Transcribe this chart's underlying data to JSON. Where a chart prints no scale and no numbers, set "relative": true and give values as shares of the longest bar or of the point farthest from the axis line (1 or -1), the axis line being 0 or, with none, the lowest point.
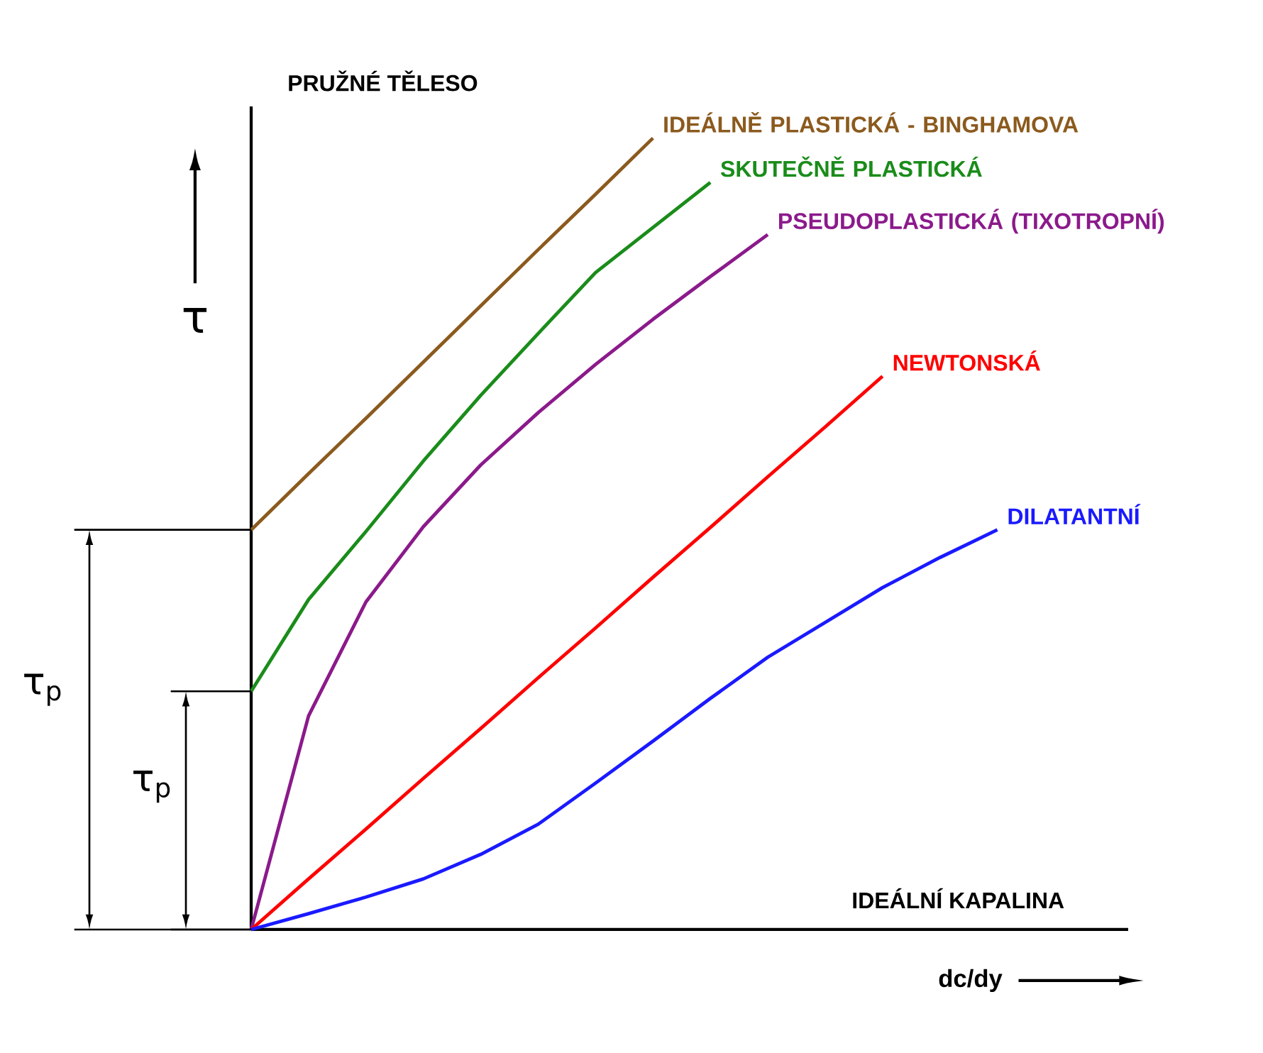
{
  "chart_data": {
    "type": "line",
    "relative": true,
    "xlabel": "dc/dy",
    "ylabel": "τ",
    "line_style": "solid",
    "categories": [
      null,
      null,
      null,
      null,
      null,
      null,
      null,
      null,
      null,
      null,
      null,
      null,
      null,
      null,
      null,
      null
    ],
    "annotations": [
      "PRUŽNÉ TĚLESO",
      "IDEÁLNÍ KAPALINA",
      "τ$_{p}$",
      "τ$_{p}$"
    ],
    "series": [
      {
        "name": "IDEÁLNĚ PLASTICKÁ - BINGHAMOVA",
        "color": "#8b5a1e",
        "values": [
          0.505,
          0.576,
          0.646,
          0.717,
          0.788,
          0.859,
          0.929,
          1.0,
          null,
          null,
          null,
          null,
          null,
          null,
          null,
          null
        ]
      },
      {
        "name": "SKUTEČNĚ PLASTICKÁ",
        "color": "#1a8c1a",
        "values": [
          0.301,
          0.417,
          0.503,
          0.592,
          0.675,
          0.753,
          0.83,
          0.887,
          0.944,
          null,
          null,
          null,
          null,
          null,
          null,
          null
        ]
      },
      {
        "name": "PSEUDOPLASTICKÁ (TIXOTROPNÍ)",
        "color": "#8b1a8b",
        "values": [
          0,
          0.27,
          0.414,
          0.509,
          0.587,
          0.653,
          0.714,
          0.771,
          0.825,
          0.878,
          null,
          null,
          null,
          null,
          null,
          null
        ]
      },
      {
        "name": "NEWTONSKÁ",
        "color": "#ff0000",
        "values": [
          0,
          0.064,
          0.127,
          0.191,
          0.254,
          0.318,
          0.381,
          0.445,
          0.508,
          0.572,
          0.635,
          0.699,
          null,
          null,
          null,
          null
        ]
      },
      {
        "name": "DILATANTNÍ",
        "color": "#1a1aff",
        "values": [
          0,
          0.02,
          0.041,
          0.064,
          0.095,
          0.133,
          0.185,
          0.238,
          0.292,
          0.344,
          0.388,
          0.432,
          0.47,
          0.505,
          null,
          null
        ]
      }
    ]
  }
}
